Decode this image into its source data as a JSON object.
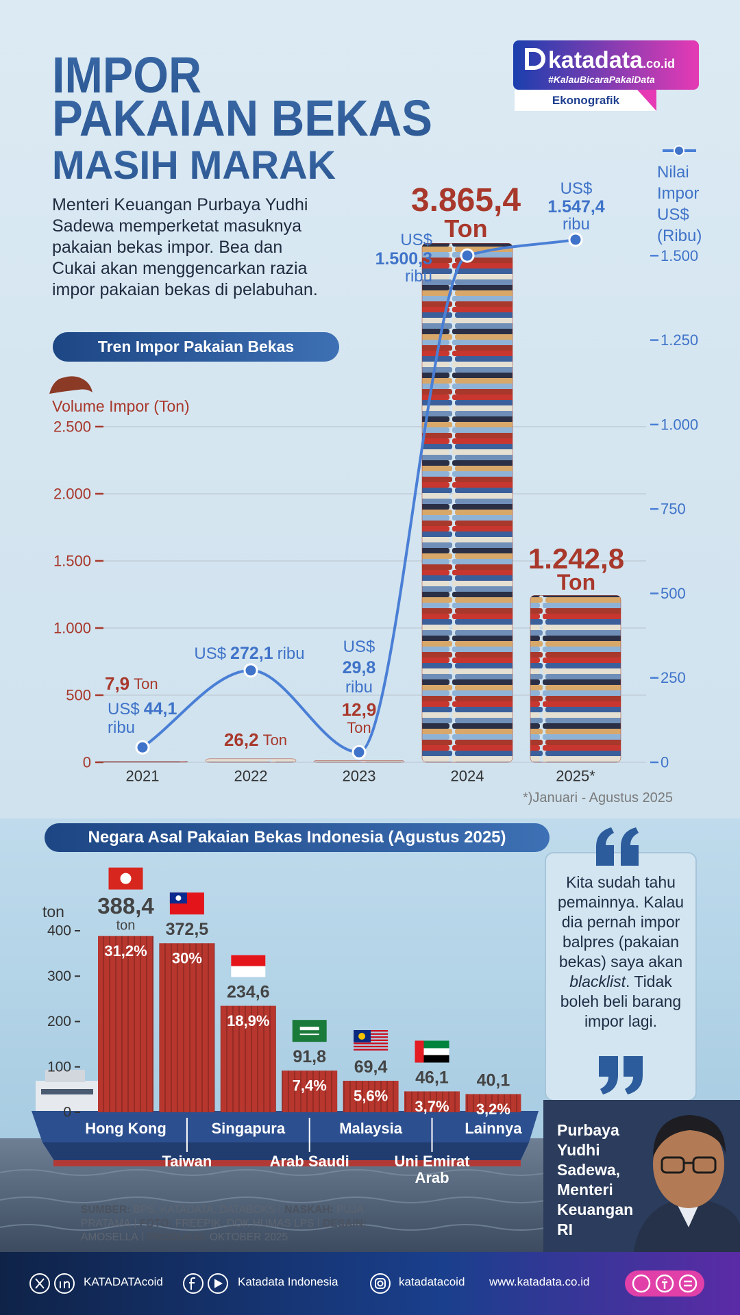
{
  "header": {
    "title_lines": [
      "IMPOR",
      "PAKAIAN BEKAS",
      "MASIH MARAK"
    ],
    "description": "Menteri Keuangan Purbaya Yudhi Sadewa memperketat masuknya pakaian bekas impor. Bea dan Cukai akan menggencarkan razia impor pakaian bekas di pelabuhan."
  },
  "logo": {
    "brand": "katadata",
    "domain": ".co.id",
    "tagline": "#KalauBicaraPakaiData",
    "label": "Ekonografik"
  },
  "chart_data": [
    {
      "type": "bar",
      "title": "Tren Impor Pakaian Bekas",
      "categories": [
        "2021",
        "2022",
        "2023",
        "2024",
        "2025*"
      ],
      "series": [
        {
          "name": "Volume Impor (Ton)",
          "color": "#a8382b",
          "values": [
            7.9,
            26.2,
            12.9,
            3865.4,
            1242.8
          ],
          "value_labels": [
            "7,9",
            "26,2",
            "12,9",
            "3.865,4",
            "1.242,8"
          ],
          "unit": "Ton"
        },
        {
          "name": "Nilai Impor US$ (Ribu)",
          "type": "line",
          "axis": "y2",
          "color": "#4a7fd6",
          "values": [
            44.1,
            272.1,
            29.8,
            1500.3,
            1547.4
          ],
          "value_labels": [
            "44,1",
            "272,1",
            "29,8",
            "1.500,3",
            "1.547,4"
          ],
          "prefix": "US$",
          "suffix": "ribu"
        }
      ],
      "ylim": [
        0,
        4025
      ],
      "yticks": [
        0,
        500,
        {
          "value": 1000,
          "label": "1.000"
        },
        {
          "value": 1500,
          "label": "1.500"
        },
        {
          "value": 2000,
          "label": "2.000"
        },
        {
          "value": 2500,
          "label": "2.500"
        }
      ],
      "y2lim": [
        0,
        1600
      ],
      "y2ticks": [
        0,
        250,
        500,
        750,
        {
          "value": 1000,
          "label": "1.000"
        },
        {
          "value": 1250,
          "label": "1.250"
        },
        {
          "value": 1500,
          "label": "1.500"
        }
      ],
      "grid": true,
      "note": "*)Januari - Agustus 2025"
    },
    {
      "type": "bar",
      "title": "Negara Asal Pakaian Bekas Indonesia (Agustus 2025)",
      "y_label": "ton",
      "categories": [
        "Hong Kong",
        "Taiwan",
        "Singapura",
        "Arab Saudi",
        "Malaysia",
        "Uni Emirat Arab",
        "Lainnya"
      ],
      "values": [
        388.4,
        372.5,
        234.6,
        91.8,
        69.4,
        46.1,
        40.1
      ],
      "value_labels": [
        "388,4",
        "372,5",
        "234,6",
        "91,8",
        "69,4",
        "46,1",
        "40,1"
      ],
      "value_unit": "ton",
      "share_labels": [
        "31,2%",
        "30%",
        "18,9%",
        "7,4%",
        "5,6%",
        "3,7%",
        "3,2%"
      ],
      "color": "#b7362d",
      "ylim": [
        0,
        400
      ],
      "yticks": [
        0,
        100,
        200,
        300,
        400
      ]
    }
  ],
  "quote": {
    "before": "Kita sudah tahu pemainnya. Kalau dia pernah impor balpres (pakaian bekas) saya akan",
    "emphasis": "blacklist",
    "after": ". Tidak boleh beli barang impor lagi."
  },
  "speaker": "Purbaya Yudhi Sadewa, Menteri Keuangan RI",
  "credits": [
    {
      "label": "SUMBER:",
      "value": "BPS, KATADATA, DATABOKS"
    },
    {
      "label": "NASKAH:",
      "value": "PUJA PRATAMA"
    },
    {
      "label": "FOTO:",
      "value": "FREEPIK, DOK HUMAS LPS"
    },
    {
      "label": "DESAIN:",
      "value": "AMOSELLA"
    },
    {
      "label": "PRODUKSI:",
      "value": "OKTOBER 2025"
    }
  ],
  "footer": [
    "KATADATAcoid",
    "Katadata Indonesia",
    "katadatacoid",
    "www.katadata.co.id"
  ]
}
